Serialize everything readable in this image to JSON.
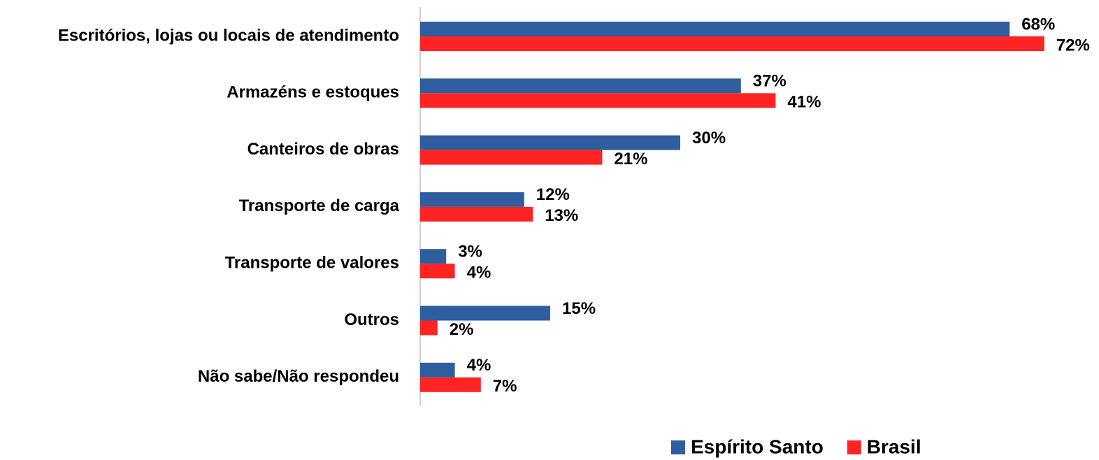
{
  "chart_data": {
    "type": "bar",
    "orientation": "horizontal",
    "categories": [
      "Escritórios, lojas ou locais de atendimento",
      "Armazéns e estoques",
      "Canteiros de obras",
      "Transporte de carga",
      "Transporte de valores",
      "Outros",
      "Não sabe/Não respondeu"
    ],
    "series": [
      {
        "name": "Espírito Santo",
        "color": "#2e5e9e",
        "values": [
          68,
          37,
          30,
          12,
          3,
          15,
          4
        ],
        "value_labels": [
          "68%",
          "37%",
          "30%",
          "12%",
          "3%",
          "15%",
          "4%"
        ]
      },
      {
        "name": "Brasil",
        "color": "#ff2424",
        "values": [
          72,
          41,
          21,
          13,
          4,
          2,
          7
        ],
        "value_labels": [
          "72%",
          "41%",
          "21%",
          "13%",
          "4%",
          "2%",
          "7%"
        ]
      }
    ],
    "legend": "bottom"
  }
}
